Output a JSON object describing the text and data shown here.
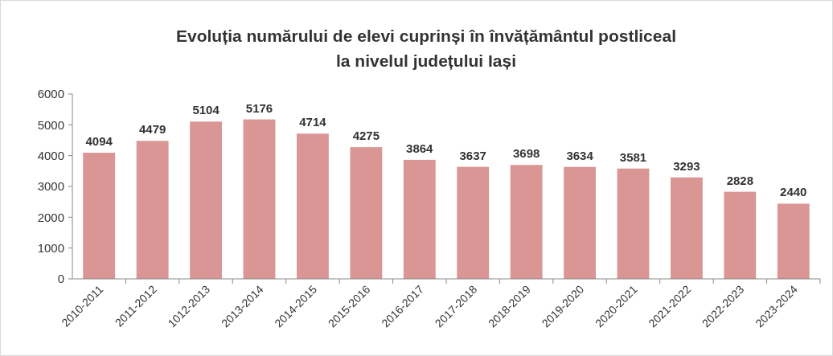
{
  "chart_data": {
    "type": "bar",
    "title": "Evoluția numărului de elevi cuprinși în învățământul postliceal\nla nivelul județului Iași",
    "categories": [
      "2010-2011",
      "2011-2012",
      "1012-2013",
      "2013-2014",
      "2014-2015",
      "2015-2016",
      "2016-2017",
      "2017-2018",
      "2018-2019",
      "2019-2020",
      "2020-2021",
      "2021-2022",
      "2022-2023",
      "2023-2024"
    ],
    "values": [
      4094,
      4479,
      5104,
      5176,
      4714,
      4275,
      3864,
      3637,
      3698,
      3634,
      3581,
      3293,
      2828,
      2440
    ],
    "color": "#d99694",
    "ylim": [
      0,
      6000
    ],
    "yticks": [
      0,
      1000,
      2000,
      3000,
      4000,
      5000,
      6000
    ],
    "data_labels": true,
    "grid": false
  }
}
